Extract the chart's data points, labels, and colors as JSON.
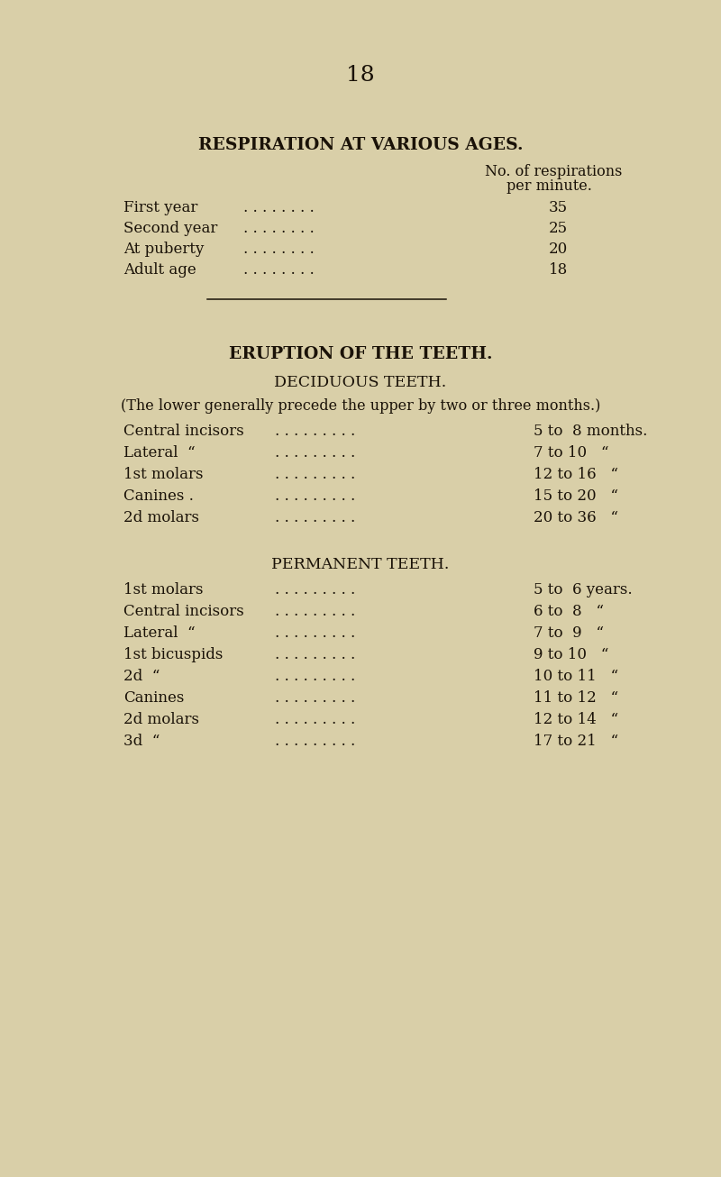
{
  "bg_color": "#d9cfa8",
  "text_color": "#1a1208",
  "page_number": "18",
  "section1_title": "RESPIRATION AT VARIOUS AGES.",
  "section1_col_header1": "No. of respirations",
  "section1_col_header2": "per minute.",
  "respiration_rows": [
    [
      "First year",
      "35"
    ],
    [
      "Second year",
      "25"
    ],
    [
      "At puberty",
      "20"
    ],
    [
      "Adult age",
      "18"
    ]
  ],
  "section2_title": "ERUPTION OF THE TEETH.",
  "deciduous_subtitle": "DECIDUOUS TEETH.",
  "deciduous_note": "(The lower generally precede the upper by two or three months.)",
  "deciduous_rows": [
    [
      "Central incisors",
      "5 to  8 months."
    ],
    [
      "Lateral  “",
      "7 to 10   “"
    ],
    [
      "1st molars",
      "12 to 16   “"
    ],
    [
      "Canines .",
      "15 to 20   “"
    ],
    [
      "2d molars",
      "20 to 36   “"
    ]
  ],
  "permanent_subtitle": "PERMANENT TEETH.",
  "permanent_rows": [
    [
      "1st molars",
      "5 to  6 years."
    ],
    [
      "Central incisors",
      "6 to  8   “"
    ],
    [
      "Lateral  “",
      "7 to  9   “"
    ],
    [
      "1st bicuspids",
      "9 to 10   “"
    ],
    [
      "2d  “",
      "10 to 11   “"
    ],
    [
      "Canines",
      "11 to 12   “"
    ],
    [
      "2d molars",
      "12 to 14   “"
    ],
    [
      "3d  “",
      "17 to 21   “"
    ]
  ]
}
